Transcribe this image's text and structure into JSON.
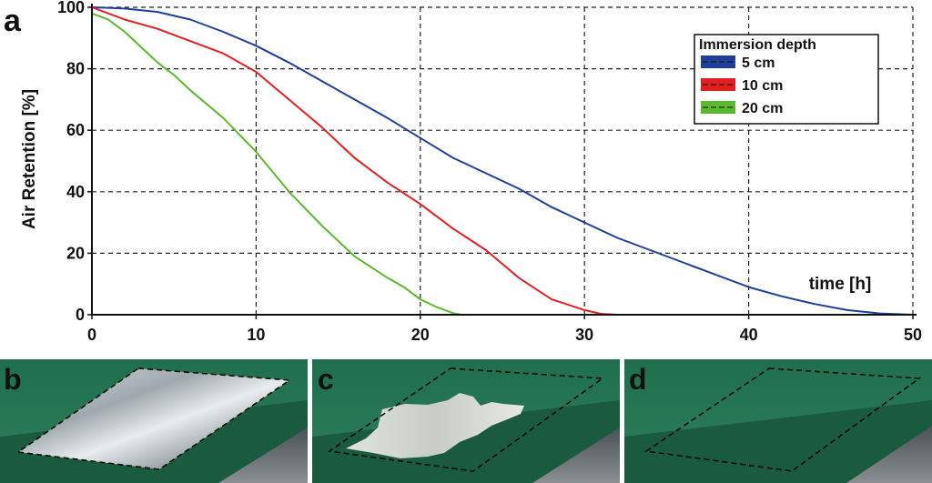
{
  "figure": {
    "panel_letters": [
      "a",
      "b",
      "c",
      "d"
    ]
  },
  "chart_data": {
    "type": "line",
    "title": "",
    "xlabel": "time [h]",
    "ylabel": "Air Retention [%]",
    "xlim": [
      0,
      50
    ],
    "ylim": [
      0,
      100
    ],
    "x_ticks": [
      "0",
      "10",
      "20",
      "30",
      "40",
      "50"
    ],
    "y_ticks": [
      "0",
      "20",
      "40",
      "60",
      "80",
      "100"
    ],
    "grid": true,
    "legend_title": "Immersion depth",
    "legend_position": "top-right",
    "series": [
      {
        "name": "5 cm",
        "color": "#1f3f9a",
        "x": [
          0,
          2,
          4,
          6,
          8,
          10,
          12,
          14,
          16,
          18,
          20,
          22,
          24,
          26,
          28,
          30,
          32,
          34,
          36,
          38,
          40,
          42,
          44,
          46,
          48,
          50
        ],
        "y": [
          100,
          99.6,
          98.5,
          96,
          92,
          87.5,
          82,
          76,
          70,
          64,
          57.5,
          51,
          46,
          41,
          35,
          30,
          25,
          21,
          17,
          13,
          9,
          6,
          3.5,
          1.5,
          0.4,
          0
        ]
      },
      {
        "name": "10 cm",
        "color": "#e02020",
        "x": [
          0,
          2,
          4,
          6,
          8,
          10,
          12,
          14,
          16,
          18,
          20,
          22,
          24,
          26,
          28,
          30,
          31,
          32,
          42
        ],
        "y": [
          100,
          96,
          93,
          89,
          85,
          79,
          70,
          61,
          51,
          43,
          36,
          28,
          21,
          12,
          5,
          1.5,
          0.3,
          0,
          0
        ]
      },
      {
        "name": "20 cm",
        "color": "#5ab82e",
        "x": [
          0,
          1,
          2,
          3,
          4,
          5,
          6,
          8,
          10,
          12,
          14,
          16,
          18,
          19,
          20,
          21,
          22,
          22.5,
          27
        ],
        "y": [
          98,
          96,
          92,
          87,
          82,
          78,
          73,
          64,
          53,
          40,
          29,
          19,
          12,
          9,
          5,
          2.5,
          0.5,
          0,
          0
        ]
      }
    ]
  },
  "photos": [
    {
      "letter": "b",
      "state": "full air layer"
    },
    {
      "letter": "c",
      "state": "partial air layer"
    },
    {
      "letter": "d",
      "state": "no air layer"
    }
  ]
}
